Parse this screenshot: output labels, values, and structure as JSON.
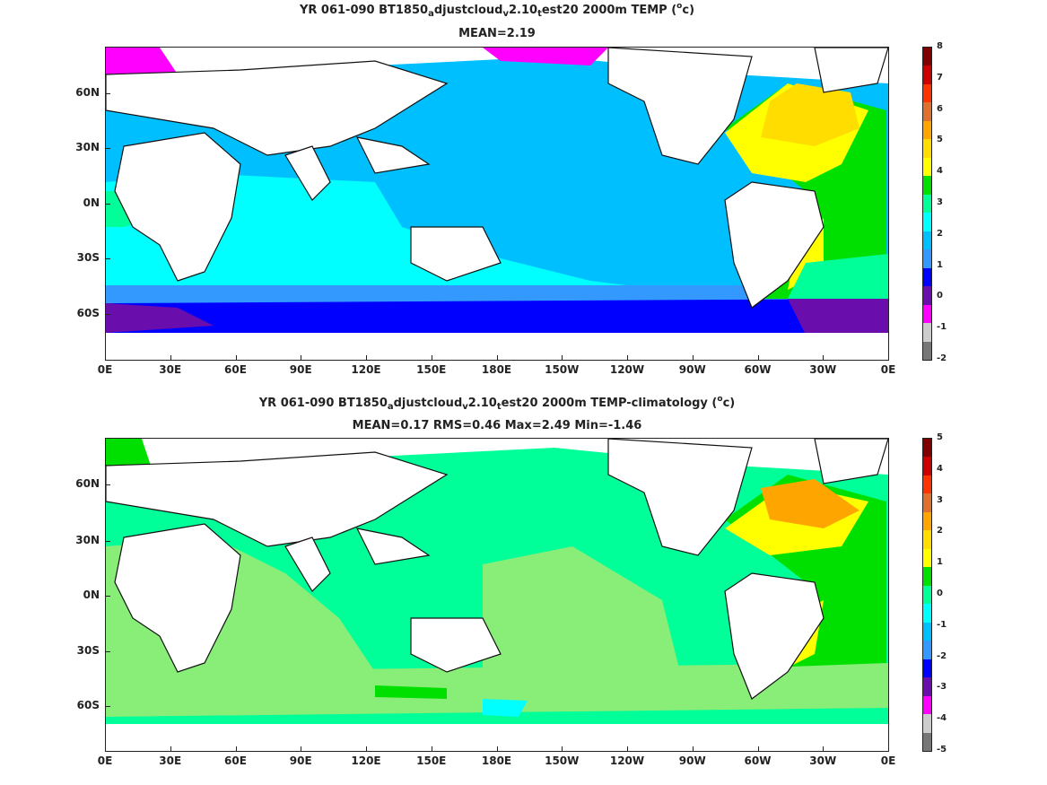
{
  "panel1": {
    "title_parts": [
      "YR 061-090 BT1850",
      "a",
      "djustcloud",
      "v",
      "2.10",
      "t",
      "est20 2000m TEMP (",
      "o",
      "c)"
    ],
    "subtitle": "MEAN=2.19",
    "colorbar_labels": [
      "8",
      "7",
      "6",
      "5",
      "4",
      "3",
      "2",
      "1",
      "0",
      "-1",
      "-2"
    ]
  },
  "panel2": {
    "title_parts": [
      "YR 061-090 BT1850",
      "a",
      "djustcloud",
      "v",
      "2.10",
      "t",
      "est20 2000m TEMP-climatology (",
      "o",
      "c)"
    ],
    "subtitle": "MEAN=0.17   RMS=0.46   Max=2.49   Min=-1.46",
    "colorbar_labels": [
      "5",
      "4",
      "3",
      "2",
      "1",
      "0",
      "-1",
      "-2",
      "-3",
      "-4",
      "-5"
    ]
  },
  "x_ticks": [
    "0E",
    "30E",
    "60E",
    "90E",
    "120E",
    "150E",
    "180E",
    "150W",
    "120W",
    "90W",
    "60W",
    "30W",
    "0E"
  ],
  "y_ticks": [
    "60N",
    "30N",
    "0N",
    "30S",
    "60S"
  ],
  "colorbar_colors": [
    "#800000",
    "#cc0000",
    "#ff3300",
    "#e07030",
    "#ffa500",
    "#ffdd00",
    "#ffff00",
    "#00e000",
    "#00ff99",
    "#00ffff",
    "#00bfff",
    "#3399ff",
    "#0000ff",
    "#6a0dad",
    "#ff00ff",
    "#cccccc",
    "#777777"
  ]
}
